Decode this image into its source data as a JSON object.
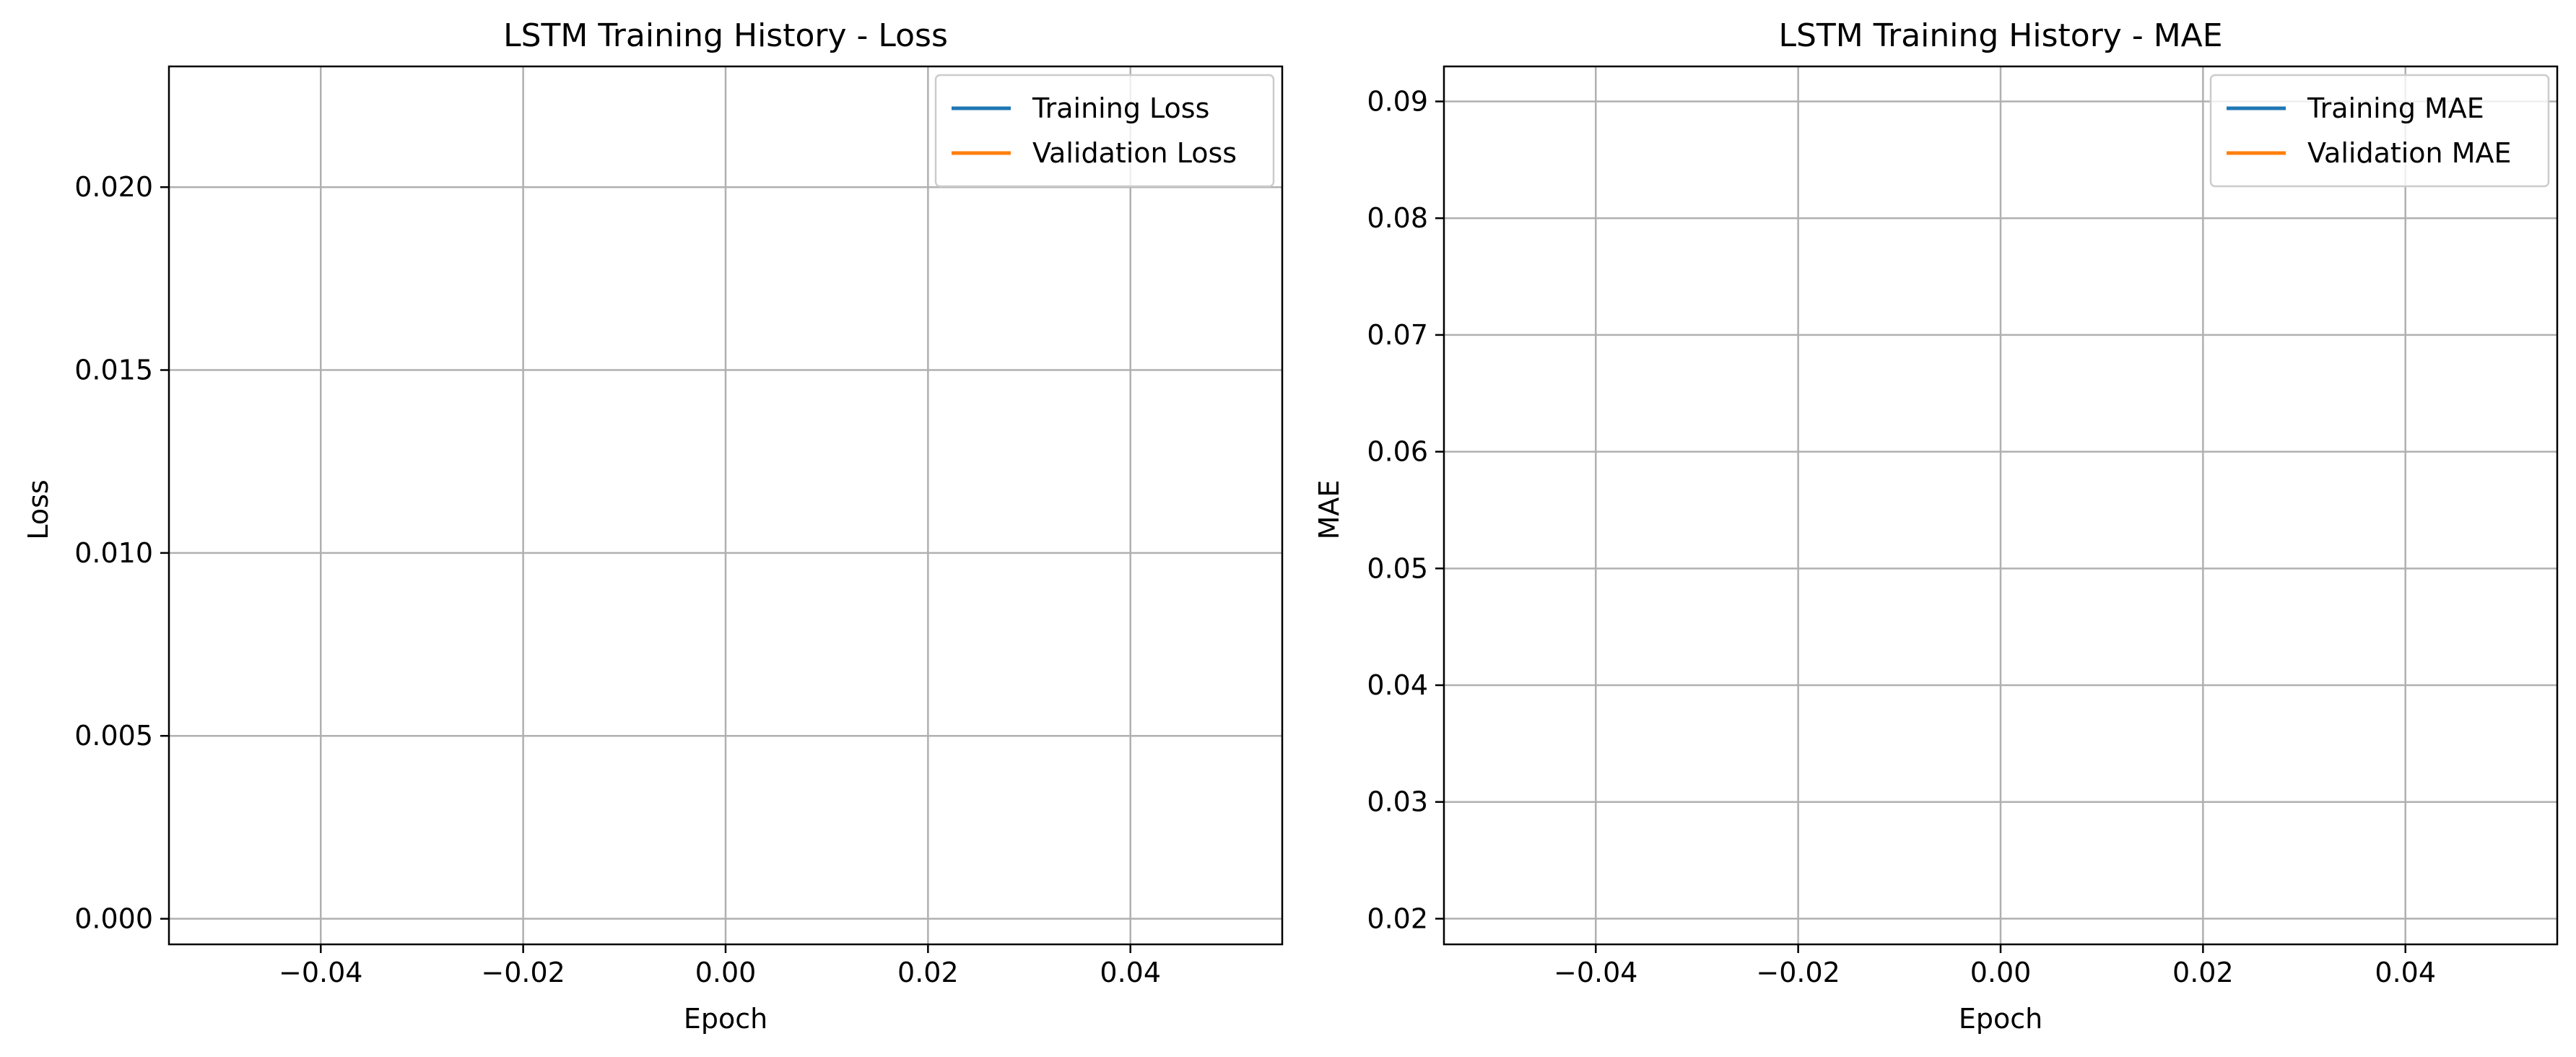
{
  "chart_data": [
    {
      "type": "line",
      "title": "LSTM Training History - Loss",
      "xlabel": "Epoch",
      "ylabel": "Loss",
      "xlim": [
        -0.055,
        0.055
      ],
      "ylim": [
        -0.0007,
        0.0233
      ],
      "x_ticks": [
        -0.04,
        -0.02,
        0.0,
        0.02,
        0.04
      ],
      "x_tick_labels": [
        "−0.04",
        "−0.02",
        "0.00",
        "0.02",
        "0.04"
      ],
      "y_ticks": [
        0.0,
        0.005,
        0.01,
        0.015,
        0.02
      ],
      "y_tick_labels": [
        "0.000",
        "0.005",
        "0.010",
        "0.015",
        "0.020"
      ],
      "grid": true,
      "legend_position": "upper right",
      "series": [
        {
          "name": "Training Loss",
          "color": "#1f77b4",
          "x": [],
          "y": []
        },
        {
          "name": "Validation Loss",
          "color": "#ff7f0e",
          "x": [],
          "y": []
        }
      ]
    },
    {
      "type": "line",
      "title": "LSTM Training History - MAE",
      "xlabel": "Epoch",
      "ylabel": "MAE",
      "xlim": [
        -0.055,
        0.055
      ],
      "ylim": [
        0.0178,
        0.093
      ],
      "x_ticks": [
        -0.04,
        -0.02,
        0.0,
        0.02,
        0.04
      ],
      "x_tick_labels": [
        "−0.04",
        "−0.02",
        "0.00",
        "0.02",
        "0.04"
      ],
      "y_ticks": [
        0.02,
        0.03,
        0.04,
        0.05,
        0.06,
        0.07,
        0.08,
        0.09
      ],
      "y_tick_labels": [
        "0.02",
        "0.03",
        "0.04",
        "0.05",
        "0.06",
        "0.07",
        "0.08",
        "0.09"
      ],
      "grid": true,
      "legend_position": "upper right",
      "series": [
        {
          "name": "Training MAE",
          "color": "#1f77b4",
          "x": [],
          "y": []
        },
        {
          "name": "Validation MAE",
          "color": "#ff7f0e",
          "x": [],
          "y": []
        }
      ]
    }
  ]
}
